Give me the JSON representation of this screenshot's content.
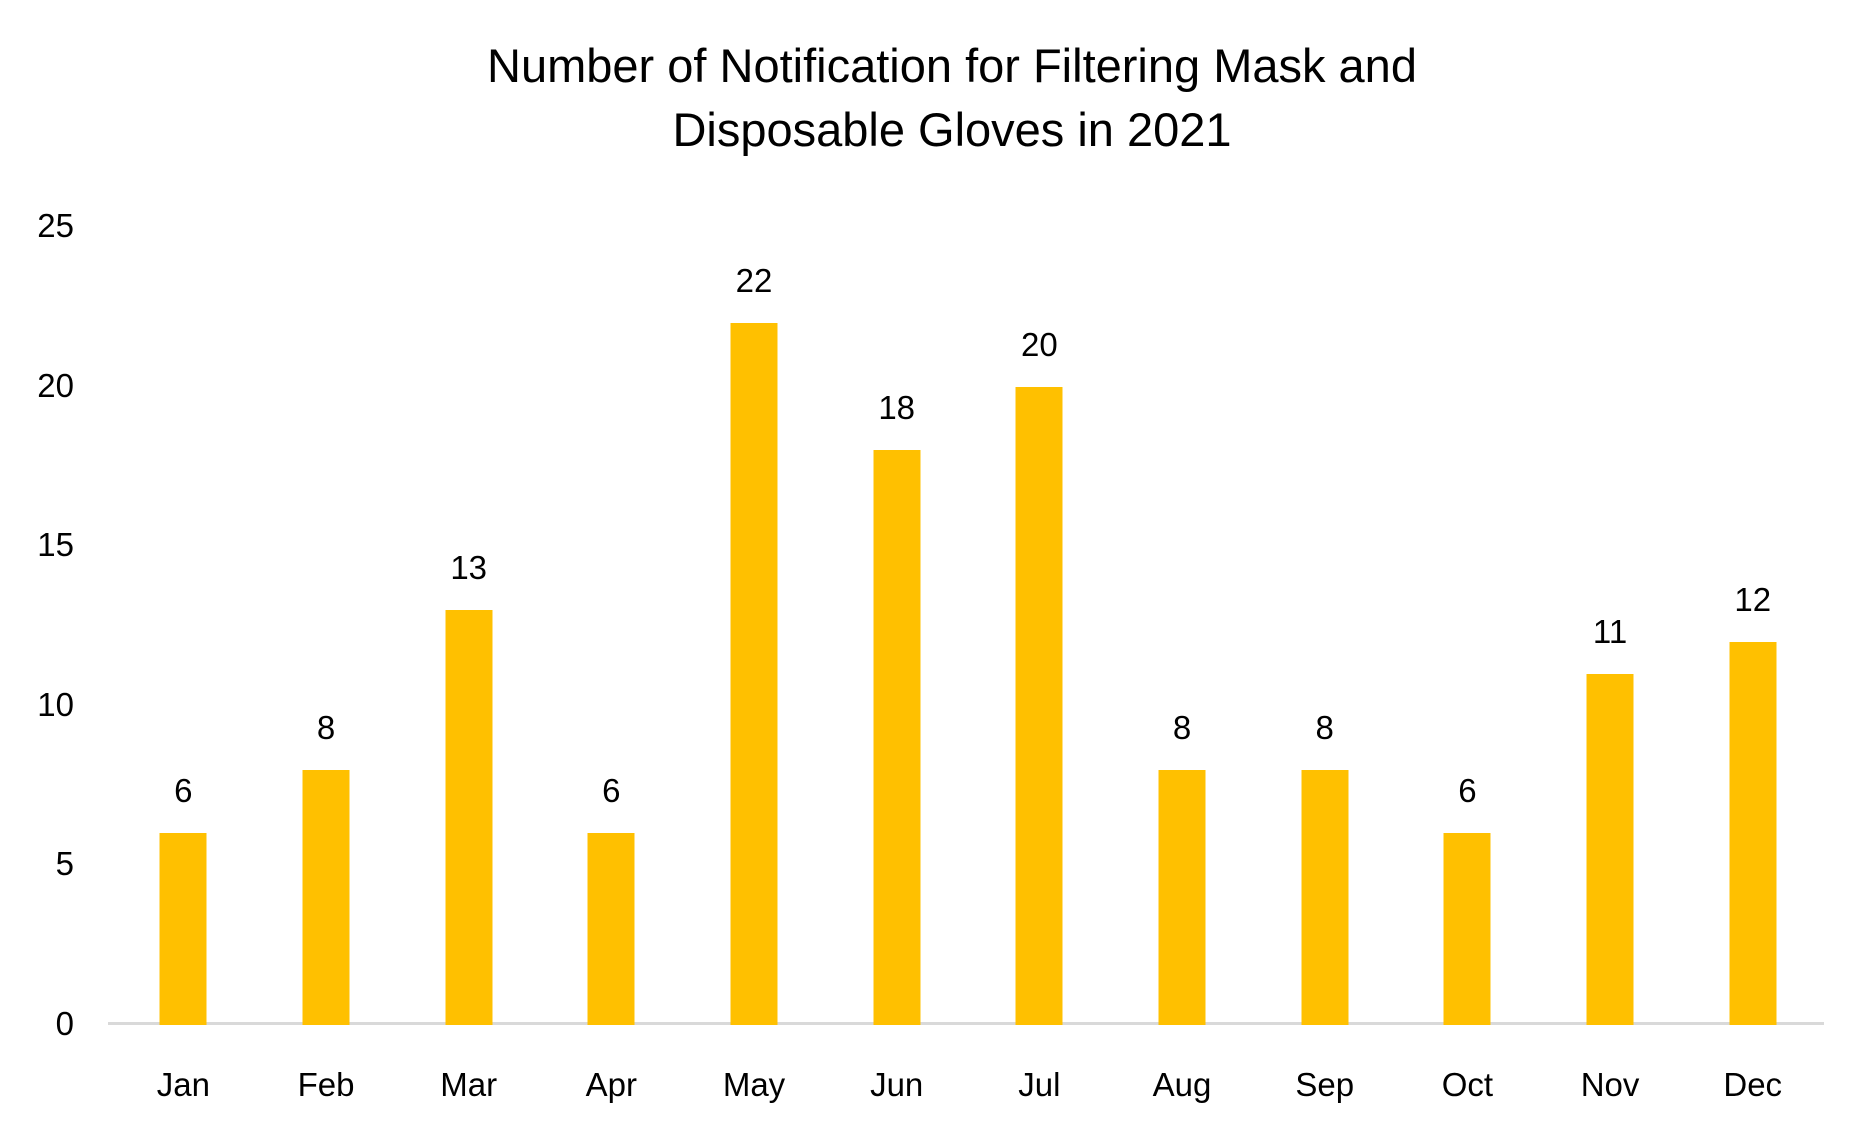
{
  "chart_data": {
    "type": "bar",
    "title": "Number of Notification for Filtering Mask and Disposable Gloves in 2021",
    "title_lines": [
      "Number of Notification for Filtering Mask and",
      "Disposable Gloves in 2021"
    ],
    "categories": [
      "Jan",
      "Feb",
      "Mar",
      "Apr",
      "May",
      "Jun",
      "Jul",
      "Aug",
      "Sep",
      "Oct",
      "Nov",
      "Dec"
    ],
    "values": [
      6,
      8,
      13,
      6,
      22,
      18,
      20,
      8,
      8,
      6,
      11,
      12
    ],
    "xlabel": "",
    "ylabel": "",
    "ylim": [
      0,
      25
    ],
    "yticks": [
      0,
      5,
      10,
      15,
      20,
      25
    ],
    "grid": false,
    "legend": "none",
    "data_labels": true,
    "bar_color": "#FFC000",
    "axis_line_color": "#D9D9D9",
    "text_color": "#000000",
    "background_color": "#FFFFFF"
  }
}
